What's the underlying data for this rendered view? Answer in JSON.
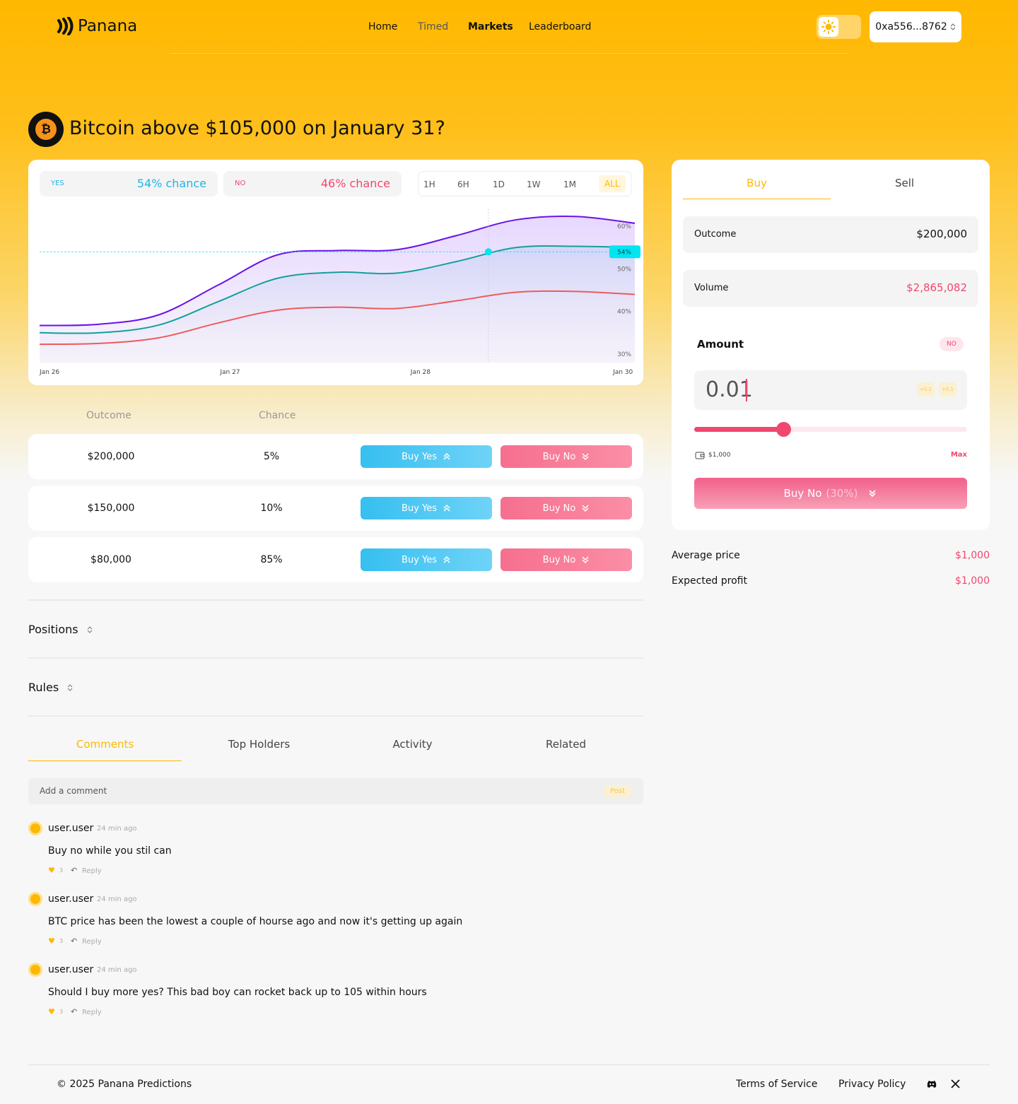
{
  "nav": {
    "brand": "Panana",
    "links": [
      "Home",
      "Timed",
      "Markets",
      "Leaderboard"
    ],
    "wallet": "0xa556...8762"
  },
  "market": {
    "title": "Bitcoin above $105,000 on January 31?",
    "yes_label": "YES",
    "yes_chance": "54% chance",
    "no_label": "NO",
    "no_chance": "46% chance",
    "ranges": [
      "1H",
      "6H",
      "1D",
      "1W",
      "1M",
      "ALL"
    ]
  },
  "chart_data": {
    "type": "line",
    "x": [
      0,
      10,
      20,
      30,
      40,
      50,
      60,
      70,
      80,
      90,
      100
    ],
    "xlim": [
      0,
      100
    ],
    "xticks": [
      {
        "value": 0,
        "label": "Jan 26"
      },
      {
        "value": 32,
        "label": "Jan 27"
      },
      {
        "value": 64,
        "label": "Jan 28"
      },
      {
        "value": 98,
        "label": "Jan 30"
      }
    ],
    "ylim": [
      28,
      64
    ],
    "yticks": [
      {
        "value": 30,
        "label": "30%"
      },
      {
        "value": 40,
        "label": "40%"
      },
      {
        "value": 50,
        "label": "50%"
      },
      {
        "value": 60,
        "label": "60%"
      }
    ],
    "series": [
      {
        "color": "#6a12e8",
        "values": [
          36.7,
          37,
          39.2,
          46.2,
          53.3,
          54.3,
          54.5,
          57.8,
          61.5,
          62.3,
          60.7
        ]
      },
      {
        "color": "#14a098",
        "values": [
          35,
          35,
          36.8,
          42.3,
          47.8,
          49.2,
          49,
          51.7,
          55,
          55.3,
          55
        ]
      },
      {
        "color": "#ee5a5a",
        "values": [
          32.3,
          32.5,
          33.8,
          37.3,
          40.3,
          41,
          40.7,
          42.5,
          44.5,
          44.7,
          44
        ]
      }
    ],
    "marker": {
      "x": 75.4,
      "value": 54,
      "label": "54%",
      "color": "#00e5f0"
    }
  },
  "outcomes": {
    "headers": [
      "Outcome",
      "Chance"
    ],
    "rows": [
      {
        "outcome": "$200,000",
        "chance": "5%",
        "buy_yes": "Buy Yes",
        "buy_no": "Buy No"
      },
      {
        "outcome": "$150,000",
        "chance": "10%",
        "buy_yes": "Buy Yes",
        "buy_no": "Buy No"
      },
      {
        "outcome": "$80,000",
        "chance": "85%",
        "buy_yes": "Buy Yes",
        "buy_no": "Buy No"
      }
    ]
  },
  "sections": [
    "Positions",
    "Rules"
  ],
  "tabs": [
    "Comments",
    "Top Holders",
    "Activity",
    "Related"
  ],
  "comment_box": {
    "placeholder": "Add a comment",
    "post": "Post"
  },
  "comments": [
    {
      "user": "user.user",
      "time": "24 min ago",
      "text": "Buy no while you stil can",
      "likes": 3,
      "reply": "Reply"
    },
    {
      "user": "user.user",
      "time": "24 min ago",
      "text": "BTC price has been the lowest a couple of hourse ago and now it's getting up again",
      "likes": 3,
      "reply": "Reply"
    },
    {
      "user": "user.user",
      "time": "24 min ago",
      "text": "Should I buy more yes? This bad boy can rocket back up to 105 within hours",
      "likes": 3,
      "reply": "Reply"
    }
  ],
  "trade": {
    "tabs": [
      "Buy",
      "Sell"
    ],
    "outcome_label": "Outcome",
    "outcome_value": "$200,000",
    "volume_label": "Volume",
    "volume_value": "$2,865,082",
    "amount_label": "Amount",
    "side": "NO",
    "amount": "0.01",
    "increments": [
      "+0.1",
      "+0.1"
    ],
    "balance": "$1,000",
    "max": "Max",
    "button": "Buy No",
    "button_pct": "(30%)",
    "avg_label": "Average price",
    "avg_value": "$1,000",
    "profit_label": "Expected profit",
    "profit_value": "$1,000"
  },
  "footer": {
    "copyright": "© 2025 Panana Predictions",
    "links": [
      "Terms of Service",
      "Privacy Policy"
    ]
  }
}
